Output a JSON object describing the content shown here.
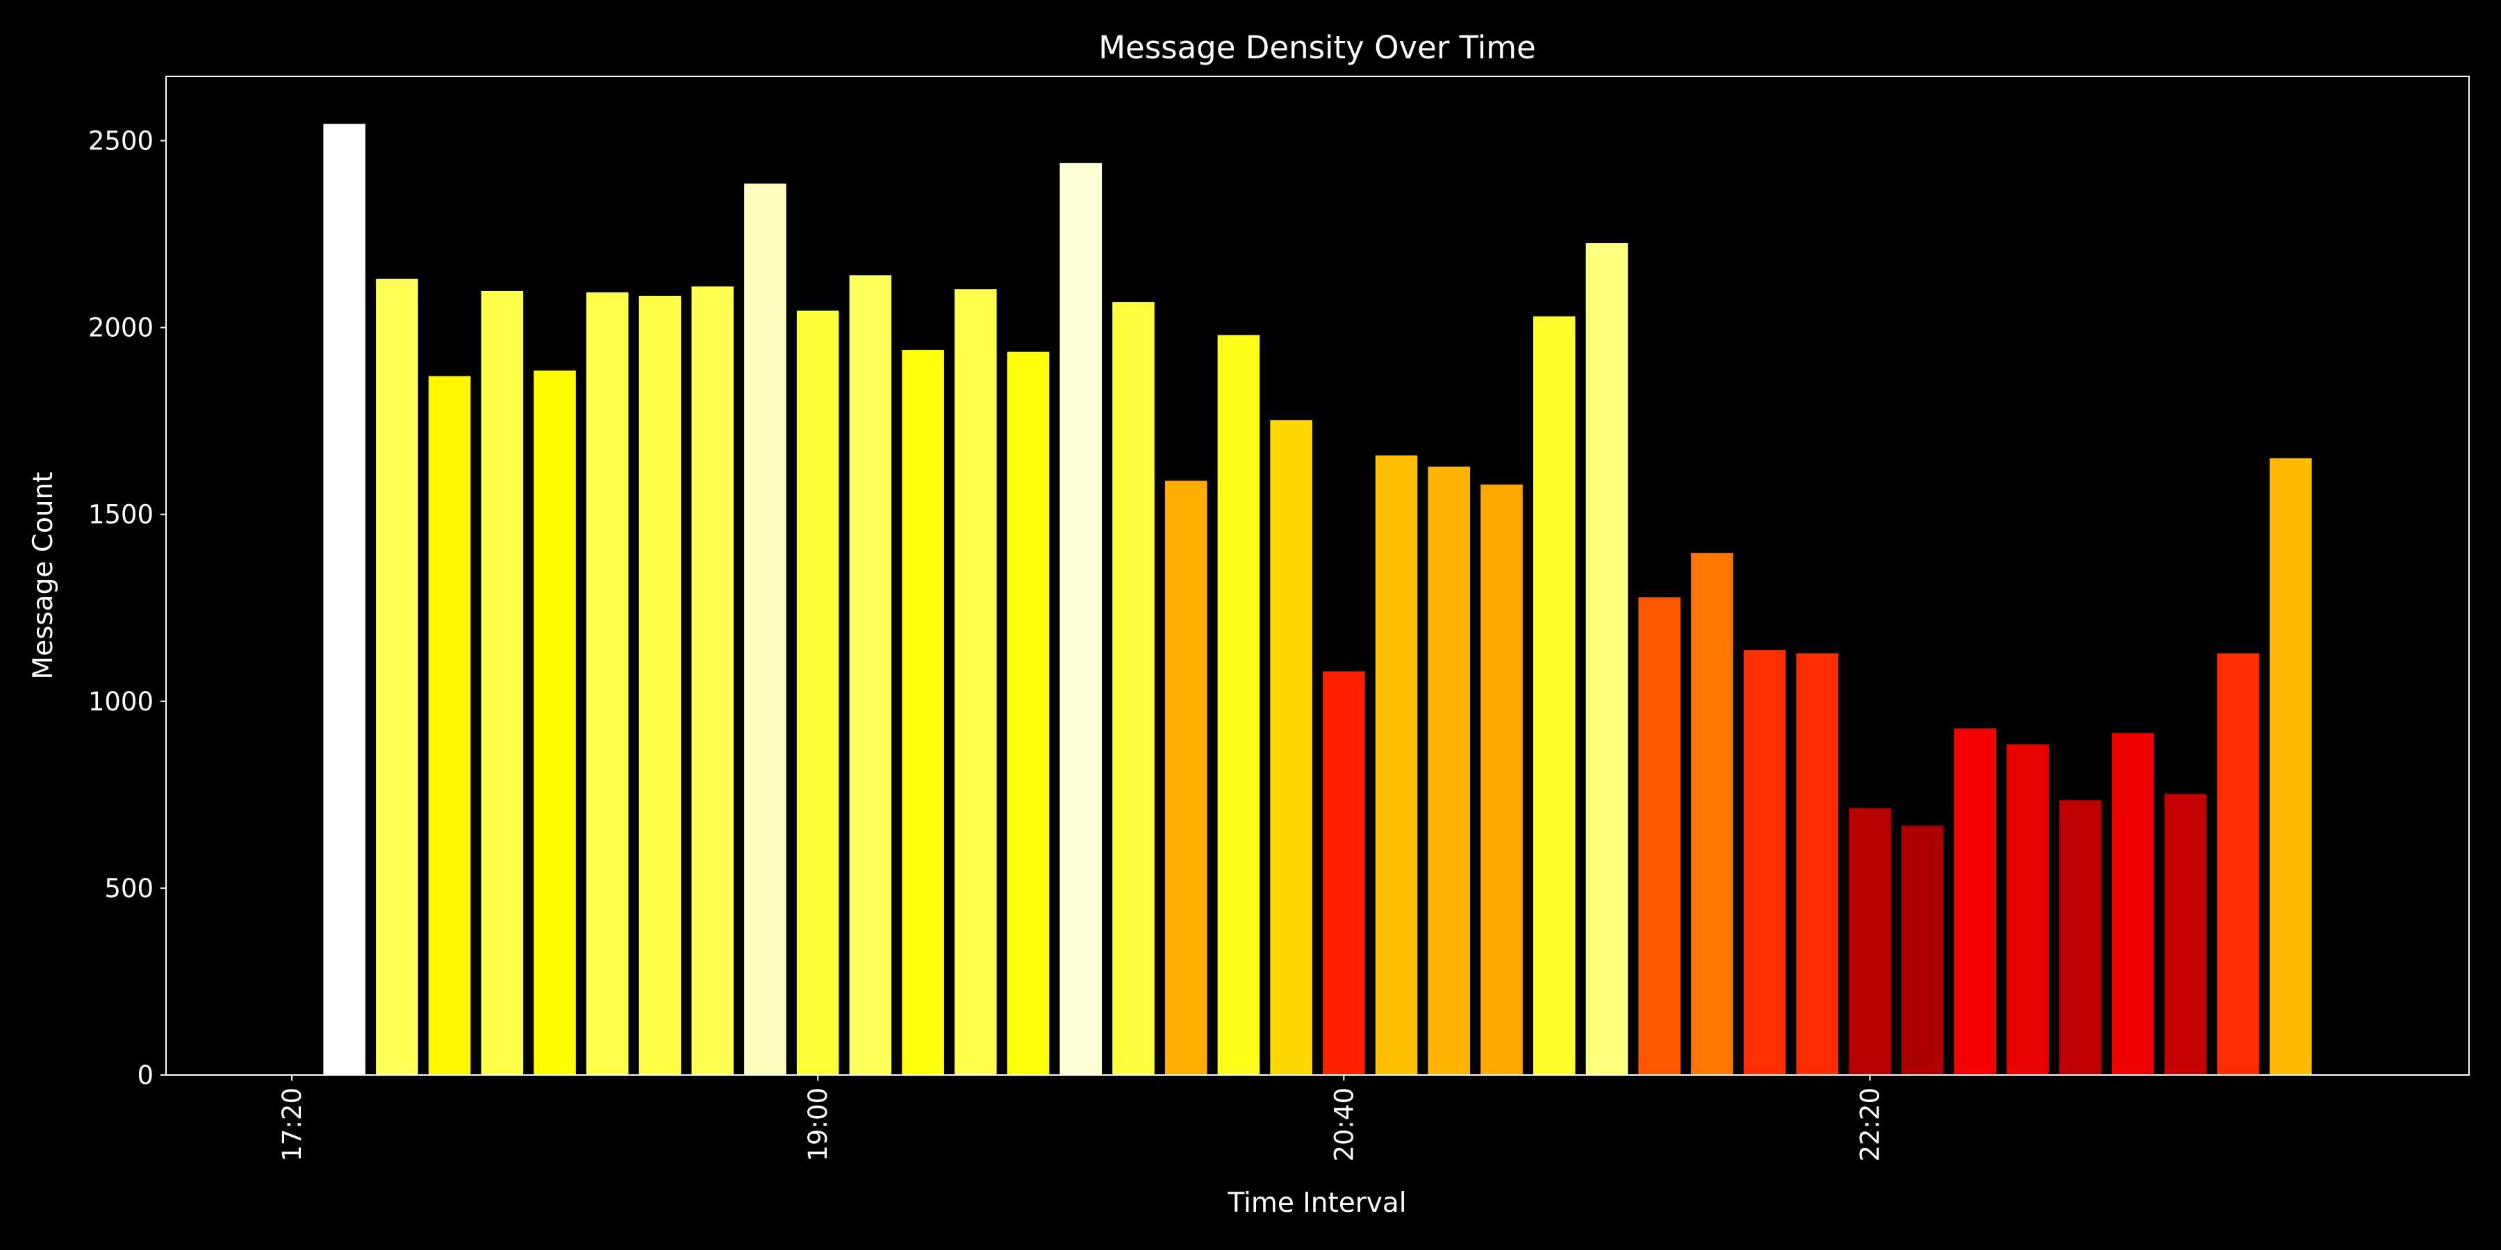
{
  "chart_data": {
    "type": "bar",
    "title": "Message Density Over Time",
    "x_label": "Time Interval",
    "y_label": "Message Count",
    "categories": [
      "17:20",
      null,
      null,
      null,
      null,
      null,
      null,
      null,
      null,
      null,
      "19:00",
      null,
      null,
      null,
      null,
      null,
      null,
      null,
      null,
      null,
      "20:40",
      null,
      null,
      null,
      null,
      null,
      null,
      null,
      null,
      null,
      "22:20",
      null,
      null,
      null,
      null,
      null,
      null,
      null,
      null,
      null
    ],
    "values": [
      60,
      2545,
      2130,
      1870,
      2098,
      1885,
      2094,
      2085,
      2110,
      2385,
      2045,
      2140,
      1940,
      2103,
      1935,
      2440,
      2068,
      1590,
      1980,
      1752,
      1080,
      1658,
      1628,
      1580,
      2030,
      2226,
      1278,
      1397,
      1137,
      1128,
      714,
      667,
      927,
      885,
      735,
      915,
      752,
      1128,
      1650,
      55
    ],
    "colormap": "hot",
    "ylim": [
      0,
      2672
    ],
    "yticks": [
      0,
      500,
      1000,
      1500,
      2000,
      2500
    ]
  }
}
